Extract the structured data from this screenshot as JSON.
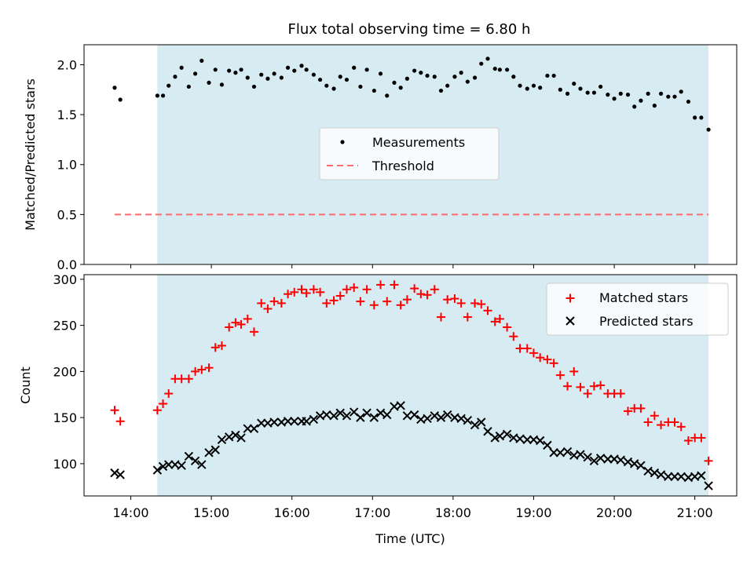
{
  "title": "Flux total observing time = 6.80 h",
  "colors": {
    "shade": "#add8e6",
    "measure": "#000000",
    "threshold": "#ff6b6b",
    "matched": "#ff0000",
    "predicted": "#000000"
  },
  "chart_data": [
    {
      "type": "scatter",
      "ylabel": "Matched/Predicted stars",
      "xlim": [
        13.42,
        21.52
      ],
      "ylim": [
        0,
        2.2
      ],
      "yticks": [
        {
          "v": 0,
          "label": "0.0"
        },
        {
          "v": 0.5,
          "label": "0.5"
        },
        {
          "v": 1.0,
          "label": "1.0"
        },
        {
          "v": 1.5,
          "label": "1.5"
        },
        {
          "v": 2.0,
          "label": "2.0"
        }
      ],
      "shaded_span": [
        14.33,
        21.17
      ],
      "threshold": {
        "value": 0.5,
        "x_from": 13.8,
        "x_to": 21.17
      },
      "legend": [
        {
          "key": "measurements",
          "label": "Measurements"
        },
        {
          "key": "threshold",
          "label": "Threshold"
        }
      ],
      "legend_placement": "center",
      "series": [
        {
          "name": "Measurements",
          "x": [
            13.8,
            13.87,
            14.33,
            14.4,
            14.47,
            14.55,
            14.63,
            14.72,
            14.8,
            14.88,
            14.97,
            15.05,
            15.13,
            15.22,
            15.3,
            15.37,
            15.45,
            15.53,
            15.62,
            15.7,
            15.78,
            15.87,
            15.95,
            16.03,
            16.12,
            16.18,
            16.27,
            16.35,
            16.43,
            16.52,
            16.6,
            16.68,
            16.77,
            16.85,
            16.93,
            17.02,
            17.1,
            17.18,
            17.27,
            17.35,
            17.43,
            17.52,
            17.6,
            17.68,
            17.77,
            17.85,
            17.93,
            18.02,
            18.1,
            18.18,
            18.27,
            18.35,
            18.43,
            18.52,
            18.58,
            18.67,
            18.75,
            18.83,
            18.92,
            19.0,
            19.08,
            19.17,
            19.25,
            19.33,
            19.42,
            19.5,
            19.58,
            19.67,
            19.75,
            19.83,
            19.92,
            20.0,
            20.08,
            20.17,
            20.25,
            20.33,
            20.42,
            20.5,
            20.58,
            20.67,
            20.75,
            20.83,
            20.92,
            21.0,
            21.08,
            21.17
          ],
          "y": [
            1.77,
            1.65,
            1.69,
            1.69,
            1.79,
            1.88,
            1.97,
            1.78,
            1.91,
            2.04,
            1.82,
            1.95,
            1.8,
            1.94,
            1.92,
            1.95,
            1.87,
            1.78,
            1.9,
            1.86,
            1.91,
            1.87,
            1.97,
            1.94,
            1.99,
            1.95,
            1.9,
            1.85,
            1.79,
            1.76,
            1.88,
            1.85,
            1.97,
            1.78,
            1.95,
            1.74,
            1.91,
            1.69,
            1.82,
            1.77,
            1.86,
            1.94,
            1.92,
            1.89,
            1.88,
            1.74,
            1.79,
            1.88,
            1.92,
            1.83,
            1.87,
            2.01,
            2.06,
            1.96,
            1.95,
            1.95,
            1.88,
            1.79,
            1.76,
            1.79,
            1.77,
            1.89,
            1.89,
            1.75,
            1.71,
            1.81,
            1.76,
            1.72,
            1.72,
            1.78,
            1.7,
            1.66,
            1.71,
            1.7,
            1.58,
            1.64,
            1.71,
            1.59,
            1.71,
            1.68,
            1.68,
            1.73,
            1.63,
            1.47,
            1.47,
            1.35
          ]
        }
      ]
    },
    {
      "type": "scatter",
      "xlabel": "Time (UTC)",
      "ylabel": "Count",
      "xlim": [
        13.42,
        21.52
      ],
      "ylim": [
        65,
        305
      ],
      "yticks": [
        {
          "v": 100,
          "label": "100"
        },
        {
          "v": 150,
          "label": "150"
        },
        {
          "v": 200,
          "label": "200"
        },
        {
          "v": 250,
          "label": "250"
        },
        {
          "v": 300,
          "label": "300"
        }
      ],
      "xticks": [
        {
          "v": 14,
          "label": "14:00"
        },
        {
          "v": 15,
          "label": "15:00"
        },
        {
          "v": 16,
          "label": "16:00"
        },
        {
          "v": 17,
          "label": "17:00"
        },
        {
          "v": 18,
          "label": "18:00"
        },
        {
          "v": 19,
          "label": "19:00"
        },
        {
          "v": 20,
          "label": "20:00"
        },
        {
          "v": 21,
          "label": "21:00"
        }
      ],
      "shaded_span": [
        14.33,
        21.17
      ],
      "legend": [
        {
          "key": "matched",
          "label": "Matched stars"
        },
        {
          "key": "predicted",
          "label": "Predicted stars"
        }
      ],
      "legend_placement": "upper right",
      "series": [
        {
          "name": "Matched stars",
          "x": [
            13.8,
            13.87,
            14.33,
            14.4,
            14.47,
            14.55,
            14.63,
            14.72,
            14.8,
            14.88,
            14.97,
            15.05,
            15.13,
            15.22,
            15.3,
            15.37,
            15.45,
            15.53,
            15.62,
            15.7,
            15.78,
            15.87,
            15.95,
            16.03,
            16.12,
            16.18,
            16.27,
            16.35,
            16.43,
            16.52,
            16.6,
            16.68,
            16.77,
            16.85,
            16.93,
            17.02,
            17.1,
            17.18,
            17.27,
            17.35,
            17.43,
            17.52,
            17.6,
            17.68,
            17.77,
            17.85,
            17.93,
            18.02,
            18.1,
            18.18,
            18.27,
            18.35,
            18.43,
            18.52,
            18.58,
            18.67,
            18.75,
            18.83,
            18.92,
            19.0,
            19.08,
            19.17,
            19.25,
            19.33,
            19.42,
            19.5,
            19.58,
            19.67,
            19.75,
            19.83,
            19.92,
            20.0,
            20.08,
            20.17,
            20.25,
            20.33,
            20.42,
            20.5,
            20.58,
            20.67,
            20.75,
            20.83,
            20.92,
            21.0,
            21.08,
            21.17
          ],
          "y": [
            158,
            146,
            158,
            165,
            176,
            192,
            192,
            192,
            200,
            202,
            204,
            226,
            228,
            248,
            253,
            251,
            257,
            243,
            274,
            268,
            276,
            274,
            284,
            286,
            289,
            285,
            289,
            286,
            274,
            277,
            282,
            289,
            291,
            276,
            289,
            272,
            294,
            276,
            294,
            272,
            278,
            290,
            284,
            283,
            289,
            259,
            278,
            279,
            274,
            259,
            274,
            273,
            266,
            254,
            257,
            248,
            238,
            225,
            225,
            220,
            215,
            213,
            209,
            196,
            184,
            200,
            183,
            176,
            184,
            185,
            176,
            176,
            176,
            157,
            160,
            160,
            145,
            152,
            142,
            145,
            145,
            140,
            125,
            128,
            128,
            103
          ]
        },
        {
          "name": "Predicted stars",
          "x": [
            13.8,
            13.87,
            14.33,
            14.4,
            14.47,
            14.55,
            14.63,
            14.72,
            14.8,
            14.88,
            14.97,
            15.05,
            15.13,
            15.22,
            15.3,
            15.37,
            15.45,
            15.53,
            15.62,
            15.7,
            15.78,
            15.87,
            15.95,
            16.03,
            16.12,
            16.18,
            16.27,
            16.35,
            16.43,
            16.52,
            16.6,
            16.68,
            16.77,
            16.85,
            16.93,
            17.02,
            17.1,
            17.18,
            17.27,
            17.35,
            17.43,
            17.52,
            17.6,
            17.68,
            17.77,
            17.85,
            17.93,
            18.02,
            18.1,
            18.18,
            18.27,
            18.35,
            18.43,
            18.52,
            18.58,
            18.67,
            18.75,
            18.83,
            18.92,
            19.0,
            19.08,
            19.17,
            19.25,
            19.33,
            19.42,
            19.5,
            19.58,
            19.67,
            19.75,
            19.83,
            19.92,
            20.0,
            20.08,
            20.17,
            20.25,
            20.33,
            20.42,
            20.5,
            20.58,
            20.67,
            20.75,
            20.83,
            20.92,
            21.0,
            21.08,
            21.17
          ],
          "y": [
            90,
            88,
            93,
            97,
            99,
            99,
            98,
            108,
            103,
            99,
            112,
            115,
            126,
            129,
            131,
            128,
            138,
            138,
            144,
            144,
            145,
            145,
            146,
            146,
            146,
            146,
            148,
            152,
            153,
            152,
            155,
            152,
            156,
            150,
            155,
            150,
            155,
            153,
            162,
            163,
            152,
            153,
            148,
            149,
            152,
            150,
            153,
            150,
            149,
            147,
            142,
            145,
            135,
            128,
            130,
            132,
            128,
            127,
            126,
            126,
            125,
            120,
            112,
            112,
            113,
            109,
            110,
            107,
            103,
            106,
            105,
            105,
            104,
            102,
            100,
            98,
            92,
            90,
            88,
            86,
            86,
            86,
            85,
            86,
            87,
            76
          ]
        }
      ]
    }
  ]
}
